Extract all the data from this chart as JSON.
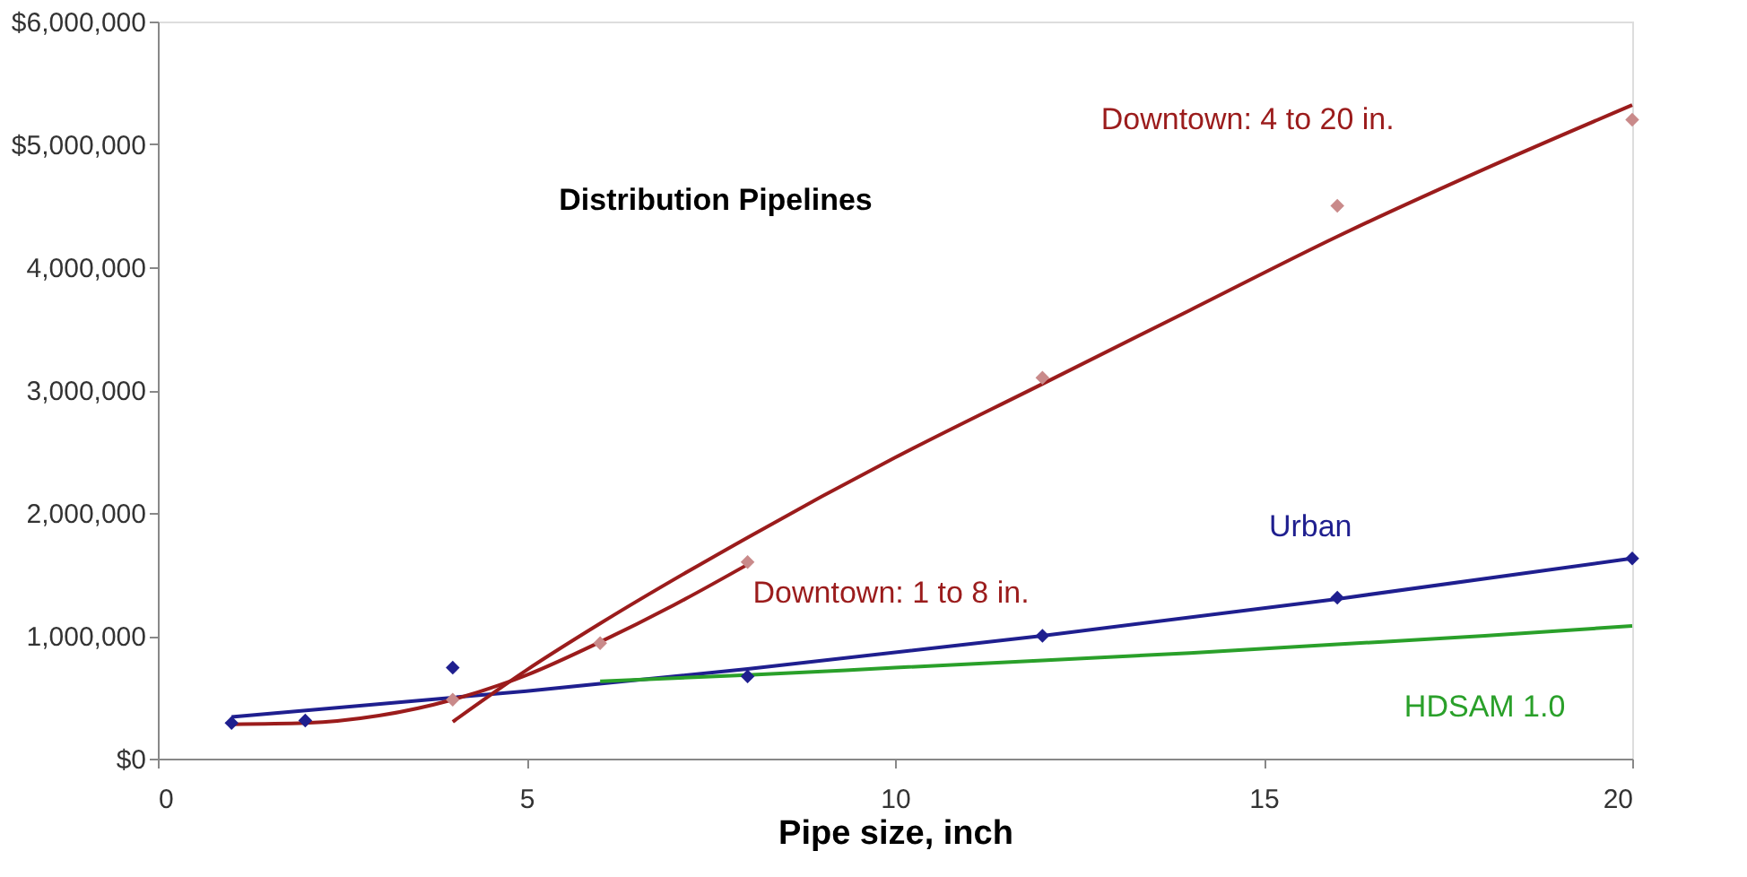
{
  "chart_data": {
    "type": "line",
    "title": "Distribution Pipelines",
    "xlabel": "Pipe size, inch",
    "xlim": [
      0,
      20
    ],
    "xticks": [
      0,
      5,
      10,
      15,
      20
    ],
    "ylim": [
      0,
      6000000
    ],
    "yticks": [
      {
        "value": 0,
        "label": "$0"
      },
      {
        "value": 1000000,
        "label": "1,000,000"
      },
      {
        "value": 2000000,
        "label": "2,000,000"
      },
      {
        "value": 3000000,
        "label": "3,000,000"
      },
      {
        "value": 4000000,
        "label": "4,000,000"
      },
      {
        "value": 5000000,
        "label": "$5,000,000"
      },
      {
        "value": 6000000,
        "label": "$6,000,000"
      }
    ],
    "grid": false,
    "legend": false,
    "line_style": "solid",
    "series": [
      {
        "type": "line",
        "name": "Urban",
        "color": "#1f1f8f",
        "marker": "none",
        "x": [
          1,
          5,
          8,
          12,
          16,
          20
        ],
        "values": [
          340000,
          550000,
          730000,
          1000000,
          1300000,
          1630000
        ]
      },
      {
        "type": "line",
        "name": "HDSAM 1.0",
        "color": "#2aa02a",
        "marker": "none",
        "x": [
          6,
          8,
          10,
          12,
          14,
          16,
          18,
          20
        ],
        "values": [
          630000,
          680000,
          740000,
          800000,
          860000,
          930000,
          1000000,
          1080000
        ]
      },
      {
        "type": "line",
        "name": "Downtown:  1 to 8 in.",
        "color": "#9b1c1c",
        "marker": "none",
        "x": [
          1,
          2,
          3,
          4,
          5,
          6,
          7,
          8
        ],
        "values": [
          280000,
          290000,
          350000,
          480000,
          680000,
          950000,
          1250000,
          1580000
        ]
      },
      {
        "type": "line",
        "name": "Downtown:  4 to 20 in.",
        "color": "#9b1c1c",
        "marker": "none",
        "x": [
          4,
          5,
          6,
          8,
          10,
          12,
          14,
          16,
          18,
          20
        ],
        "values": [
          300000,
          720000,
          1100000,
          1800000,
          2450000,
          3050000,
          3650000,
          4250000,
          4800000,
          5320000
        ]
      },
      {
        "type": "scatter",
        "color": "#1f1f8f",
        "marker": "diamond",
        "x": [
          1,
          2,
          4,
          8,
          12,
          16,
          20
        ],
        "values": [
          290000,
          310000,
          740000,
          670000,
          1000000,
          1310000,
          1630000
        ]
      },
      {
        "type": "scatter",
        "color": "#c98a8a",
        "marker": "diamond",
        "x": [
          4,
          6,
          8,
          12,
          16,
          20
        ],
        "values": [
          480000,
          940000,
          1600000,
          3100000,
          4500000,
          5200000
        ]
      }
    ]
  }
}
